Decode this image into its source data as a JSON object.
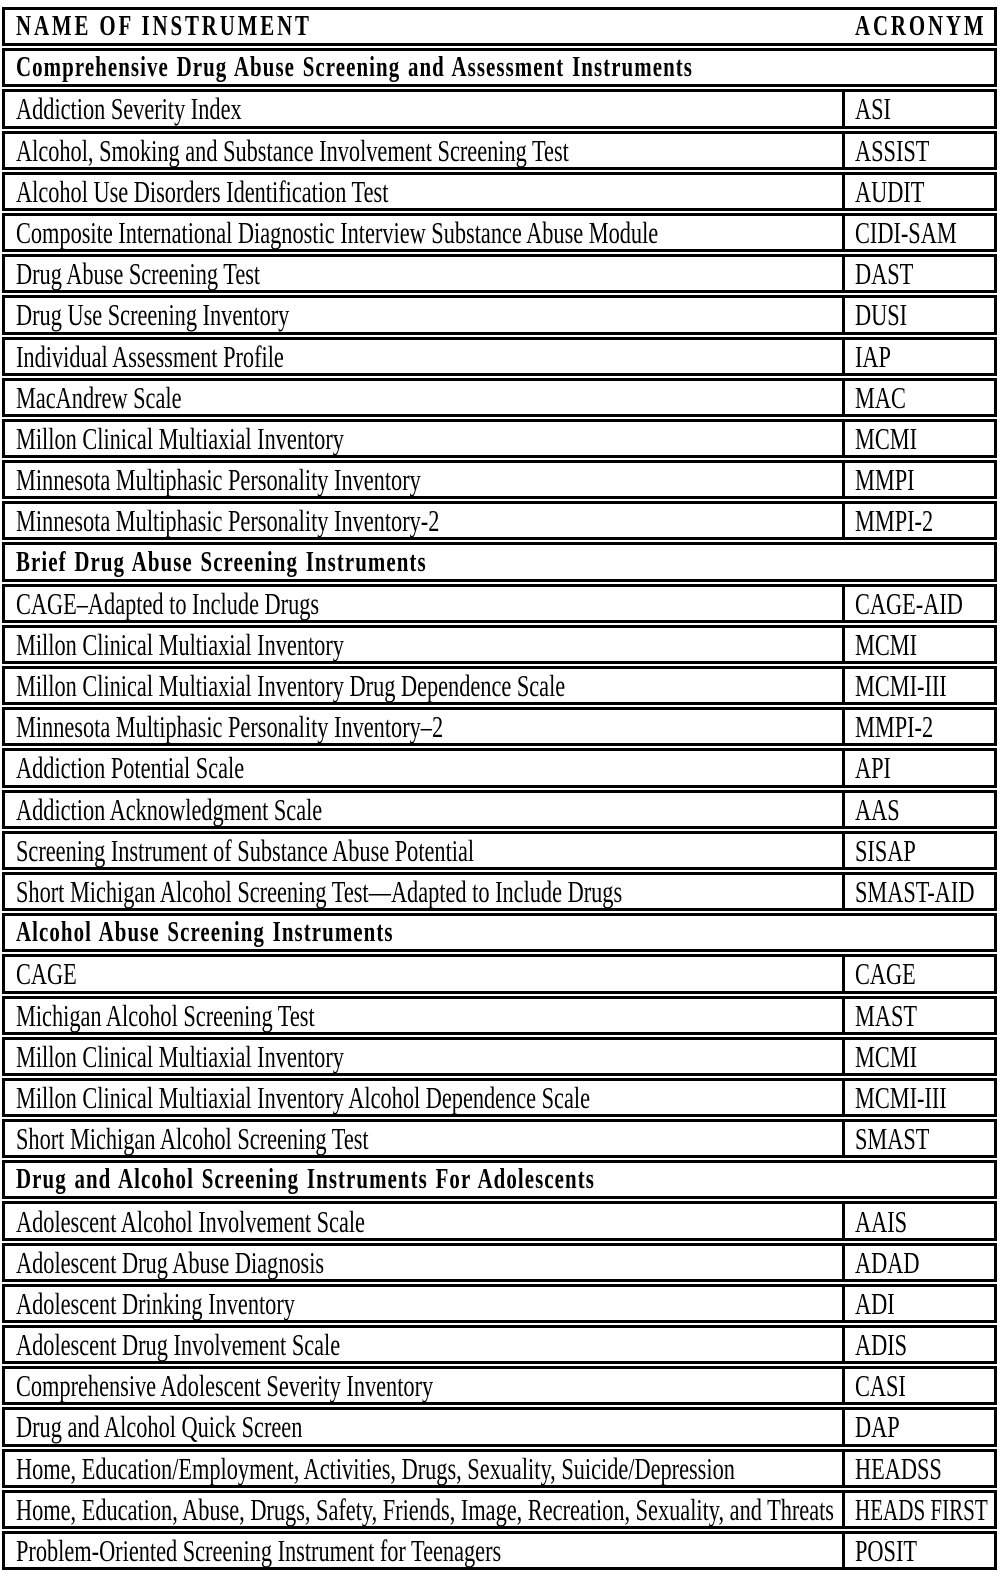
{
  "colors": {
    "border": "#000000",
    "background": "#ffffff",
    "text": "#000000"
  },
  "table": {
    "header": {
      "name": "NAME OF INSTRUMENT",
      "acronym": "ACRONYM"
    },
    "sections": [
      {
        "title": "Comprehensive Drug Abuse Screening and Assessment Instruments",
        "rows": [
          {
            "name": "Addiction Severity Index",
            "acronym": "ASI"
          },
          {
            "name": "Alcohol, Smoking and Substance Involvement Screening Test",
            "acronym": "ASSIST"
          },
          {
            "name": "Alcohol Use Disorders Identification Test",
            "acronym": "AUDIT"
          },
          {
            "name": "Composite International Diagnostic Interview Substance Abuse Module",
            "acronym": "CIDI-SAM"
          },
          {
            "name": "Drug Abuse Screening Test",
            "acronym": "DAST"
          },
          {
            "name": "Drug Use Screening Inventory",
            "acronym": "DUSI"
          },
          {
            "name": "Individual Assessment Profile",
            "acronym": "IAP"
          },
          {
            "name": "MacAndrew Scale",
            "acronym": "MAC"
          },
          {
            "name": "Millon Clinical Multiaxial Inventory",
            "acronym": "MCMI"
          },
          {
            "name": "Minnesota Multiphasic Personality Inventory",
            "acronym": "MMPI"
          },
          {
            "name": "Minnesota Multiphasic Personality Inventory-2",
            "acronym": "MMPI-2"
          }
        ]
      },
      {
        "title": "Brief Drug Abuse Screening Instruments",
        "rows": [
          {
            "name": "CAGE–Adapted to Include Drugs",
            "acronym": "CAGE-AID"
          },
          {
            "name": "Millon Clinical Multiaxial Inventory",
            "acronym": "MCMI"
          },
          {
            "name": "Millon Clinical Multiaxial Inventory Drug Dependence Scale",
            "acronym": "MCMI-III"
          },
          {
            "name": "Minnesota Multiphasic Personality Inventory–2",
            "acronym": "MMPI-2"
          },
          {
            "name": "Addiction Potential Scale",
            "acronym": "API"
          },
          {
            "name": "Addiction Acknowledgment Scale",
            "acronym": "AAS"
          },
          {
            "name": "Screening Instrument of Substance Abuse Potential",
            "acronym": "SISAP"
          },
          {
            "name": "Short Michigan Alcohol Screening Test—Adapted to Include Drugs",
            "acronym": "SMAST-AID"
          }
        ]
      },
      {
        "title": "Alcohol Abuse Screening Instruments",
        "rows": [
          {
            "name": "CAGE",
            "acronym": "CAGE"
          },
          {
            "name": "Michigan Alcohol Screening Test",
            "acronym": "MAST"
          },
          {
            "name": "Millon Clinical Multiaxial Inventory",
            "acronym": "MCMI"
          },
          {
            "name": "Millon Clinical Multiaxial Inventory Alcohol Dependence Scale",
            "acronym": "MCMI-III"
          },
          {
            "name": "Short Michigan Alcohol Screening Test",
            "acronym": "SMAST"
          }
        ]
      },
      {
        "title": "Drug and Alcohol Screening Instruments For Adolescents",
        "rows": [
          {
            "name": "Adolescent Alcohol Involvement Scale",
            "acronym": "AAIS"
          },
          {
            "name": "Adolescent Drug Abuse Diagnosis",
            "acronym": "ADAD"
          },
          {
            "name": "Adolescent Drinking Inventory",
            "acronym": "ADI"
          },
          {
            "name": "Adolescent Drug Involvement Scale",
            "acronym": "ADIS"
          },
          {
            "name": "Comprehensive Adolescent Severity Inventory",
            "acronym": "CASI"
          },
          {
            "name": "Drug and Alcohol Quick Screen",
            "acronym": "DAP"
          },
          {
            "name": "Home, Education/Employment, Activities, Drugs, Sexuality, Suicide/Depression",
            "acronym": "HEADSS"
          },
          {
            "name": "Home, Education, Abuse, Drugs, Safety, Friends, Image, Recreation, Sexuality, and Threats",
            "acronym": "HEADS FIRST"
          },
          {
            "name": "Problem-Oriented Screening Instrument for Teenagers",
            "acronym": "POSIT"
          }
        ]
      }
    ]
  }
}
